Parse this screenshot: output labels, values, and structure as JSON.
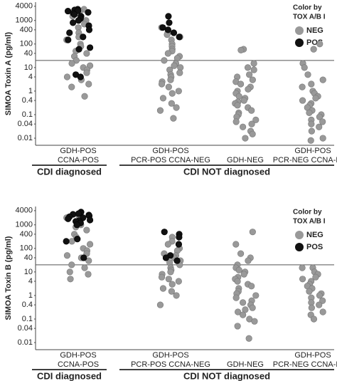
{
  "chart_data": [
    {
      "type": "strip",
      "ylabel": "SIMOA Toxin A (pg/ml)",
      "log_scale": true,
      "categories": [
        [
          "GDH-POS",
          "CCNA-POS"
        ],
        [
          "GDH-POS",
          "PCR-POS CCNA-NEG"
        ],
        [
          "GDH-NEG"
        ],
        [
          "GDH-POS",
          "PCR-NEG CCNA-NEG"
        ]
      ],
      "group_labels": [
        "CDI diagnosed",
        "CDI NOT diagnosed"
      ],
      "legend_title": [
        "Color by",
        "TOX A/B I"
      ],
      "reference_line": 20,
      "ylim": [
        0.005,
        6000
      ],
      "yticks": [
        0.01,
        0.04,
        0.1,
        0.4,
        1,
        4,
        10,
        40,
        100,
        400,
        1000,
        4000
      ],
      "series": [
        {
          "name": "NEG",
          "color": "#999999",
          "values": [
            [
              3000,
              2500,
              2000,
              1500,
              1000,
              700,
              500,
              300,
              200,
              150,
              100,
              80,
              50,
              40,
              30,
              20,
              15,
              12,
              10,
              8,
              6,
              4,
              3,
              2,
              1.5,
              0.6
            ],
            [
              500,
              300,
              250,
              200,
              150,
              100,
              80,
              60,
              50,
              40,
              30,
              25,
              20,
              15,
              12,
              10,
              8,
              6,
              5,
              4,
              3,
              2.5,
              2,
              1.5,
              1,
              0.8,
              0.5,
              0.3,
              0.2,
              0.15,
              0.07
            ],
            [
              60,
              55,
              15,
              10,
              8,
              5,
              4,
              3,
              2.5,
              2,
              1.5,
              1.2,
              1,
              0.8,
              0.6,
              0.5,
              0.4,
              0.35,
              0.3,
              0.25,
              0.2,
              0.15,
              0.12,
              0.1,
              0.08,
              0.06,
              0.05,
              0.04,
              0.03,
              0.02,
              0.015,
              0.01
            ],
            [
              100,
              60,
              15,
              10,
              5,
              3,
              2,
              1.5,
              1,
              0.8,
              0.6,
              0.5,
              0.4,
              0.3,
              0.25,
              0.2,
              0.15,
              0.12,
              0.1,
              0.08,
              0.06,
              0.05,
              0.04,
              0.03,
              0.02,
              0.01,
              0.008
            ]
          ]
        },
        {
          "name": "POS",
          "color": "#111111",
          "values": [
            [
              3000,
              2800,
              2600,
              2500,
              2200,
              2000,
              1800,
              1500,
              1200,
              1000,
              800,
              600,
              400,
              300,
              200,
              150,
              70,
              60,
              5,
              4
            ],
            [
              1500,
              800,
              500,
              400,
              300,
              200
            ],
            [],
            []
          ]
        }
      ]
    },
    {
      "type": "strip",
      "ylabel": "SIMOA Toxin B (pg/ml)",
      "log_scale": true,
      "categories": [
        [
          "GDH-POS",
          "CCNA-POS"
        ],
        [
          "GDH-POS",
          "PCR-POS CCNA-NEG"
        ],
        [
          "GDH-NEG"
        ],
        [
          "GDH-POS",
          "PCR-NEG CCNA-NEG"
        ]
      ],
      "group_labels": [
        "CDI diagnosed",
        "CDI NOT diagnosed"
      ],
      "legend_title": [
        "Color by",
        "TOX A/B I"
      ],
      "reference_line": 20,
      "ylim": [
        0.005,
        6000
      ],
      "yticks": [
        0.01,
        0.04,
        0.1,
        0.4,
        1,
        4,
        10,
        40,
        100,
        400,
        1000,
        4000
      ],
      "series": [
        {
          "name": "NEG",
          "color": "#999999",
          "values": [
            [
              3000,
              2500,
              2000,
              1500,
              1000,
              800,
              600,
              400,
              300,
              200,
              150,
              100,
              80,
              60,
              50,
              40,
              30,
              20,
              15,
              10,
              8,
              5
            ],
            [
              300,
              200,
              150,
              100,
              80,
              60,
              50,
              40,
              30,
              25,
              20,
              15,
              12,
              10,
              8,
              6,
              5,
              4,
              3,
              2,
              1.5,
              1,
              0.4
            ],
            [
              500,
              150,
              60,
              40,
              30,
              20,
              15,
              12,
              10,
              8,
              6,
              5,
              4,
              3,
              2.5,
              2,
              1.5,
              1.2,
              1,
              0.8,
              0.6,
              0.5,
              0.4,
              0.3,
              0.25,
              0.2,
              0.15,
              0.1,
              0.08,
              0.05,
              0.015
            ],
            [
              15,
              15,
              10,
              8,
              6,
              5,
              4,
              3,
              2.5,
              2,
              1.5,
              1.2,
              1,
              0.8,
              0.6,
              0.5,
              0.4,
              0.3,
              0.2,
              0.15,
              0.1
            ]
          ]
        },
        {
          "name": "POS",
          "color": "#111111",
          "values": [
            [
              3500,
              3200,
              3000,
              2800,
              2600,
              2400,
              2200,
              2000,
              1800,
              1600,
              1500,
              1400,
              1200,
              1000,
              250,
              200,
              40
            ],
            [
              500,
              400,
              300,
              150,
              50,
              40,
              30
            ],
            [],
            []
          ]
        }
      ]
    }
  ]
}
